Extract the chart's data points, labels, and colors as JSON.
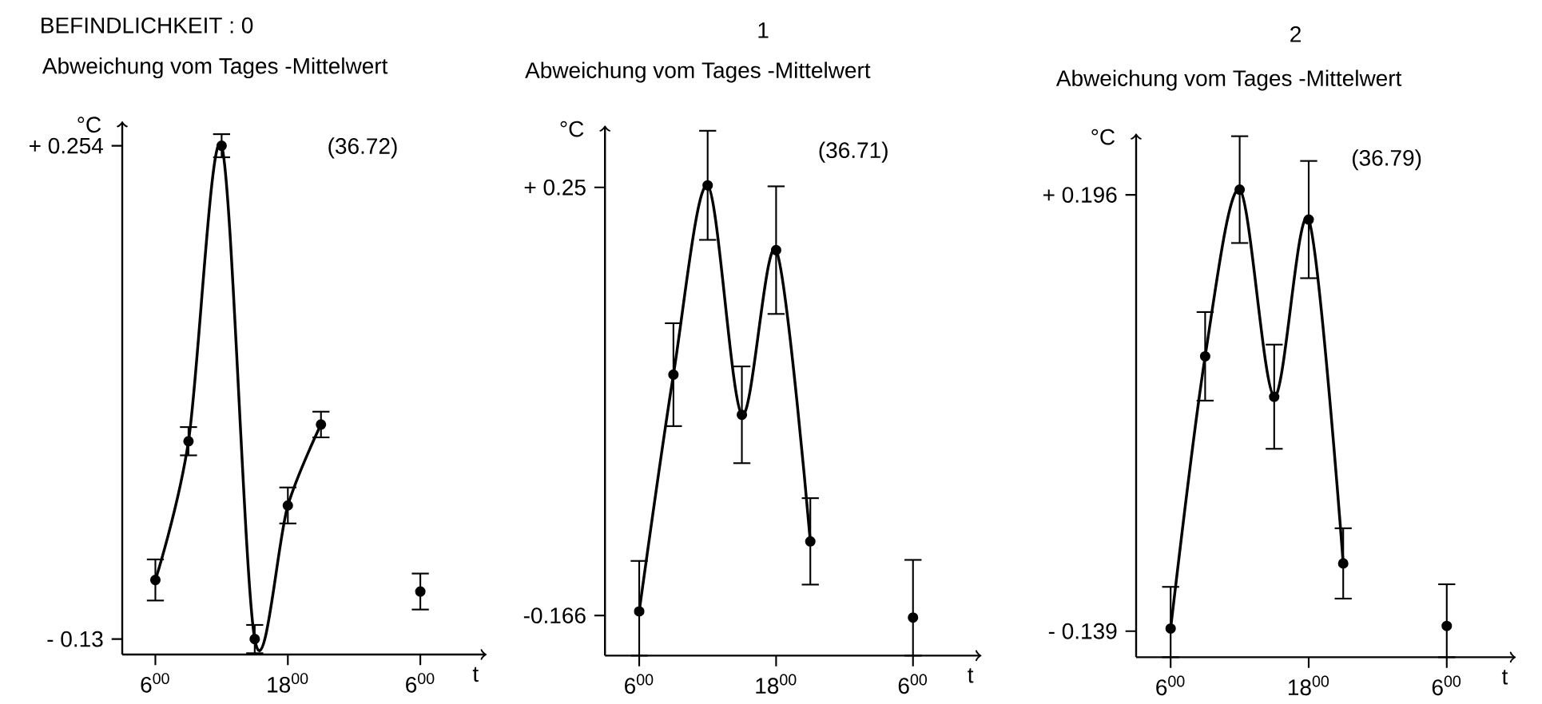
{
  "chart_data": [
    {
      "type": "line",
      "title": "BEFINDLICHKEIT : 0",
      "ylabel": "Abweichung vom Tages -Mittelwert",
      "xlabel": "t",
      "annotations": [
        "°C",
        "(36.72)"
      ],
      "marker": "circle",
      "categories": [
        "6$^{00}$",
        null,
        null,
        null,
        "18$^{00}$",
        null,
        null,
        null,
        "6$^{00}$"
      ],
      "ylim": [
        -0.142,
        0.273
      ],
      "yticks": [
        {
          "value": -0.13,
          "label": "- 0.13"
        },
        {
          "value": 0.254,
          "label": "+ 0.254"
        }
      ],
      "series": [
        {
          "color": "#000000",
          "values": [
            -0.084,
            0.024,
            0.254,
            -0.13,
            -0.026,
            0.037,
            null,
            null,
            null
          ],
          "errors": [
            0.016,
            0.011,
            0.009,
            0.011,
            0.014,
            0.01,
            null,
            null,
            null
          ]
        },
        {
          "type": "scatter",
          "color": "#000000",
          "values": [
            null,
            null,
            null,
            null,
            null,
            null,
            null,
            null,
            -0.093
          ],
          "errors": [
            null,
            null,
            null,
            null,
            null,
            null,
            null,
            null,
            0.014
          ]
        }
      ]
    },
    {
      "type": "line",
      "title": "1",
      "ylabel": "Abweichung vom Tages -Mittelwert",
      "xlabel": "t",
      "annotations": [
        "°C",
        "(36.71)"
      ],
      "marker": "circle",
      "categories": [
        "6$^{00}$",
        null,
        null,
        null,
        "18$^{00}$",
        null,
        null,
        null,
        "6$^{00}$"
      ],
      "ylim": [
        -0.205,
        0.31
      ],
      "yticks": [
        {
          "value": -0.166,
          "label": "-0.166"
        },
        {
          "value": 0.25,
          "label": "+ 0.25"
        }
      ],
      "series": [
        {
          "color": "#000000",
          "values": [
            -0.162,
            0.068,
            0.252,
            0.029,
            0.189,
            -0.094,
            null,
            null,
            null
          ],
          "errors": [
            [
              -0.205,
              -0.113
            ],
            0.05,
            0.053,
            0.047,
            0.062,
            0.042,
            null,
            null,
            null
          ]
        },
        {
          "type": "scatter",
          "color": "#000000",
          "values": [
            null,
            null,
            null,
            null,
            null,
            null,
            null,
            null,
            -0.168
          ],
          "errors": [
            null,
            null,
            null,
            null,
            null,
            null,
            null,
            null,
            [
              -0.205,
              -0.112
            ]
          ]
        }
      ]
    },
    {
      "type": "line",
      "title": "2",
      "ylabel": "Abweichung vom Tages -Mittelwert",
      "xlabel": "t",
      "annotations": [
        "°C",
        "(36.79)"
      ],
      "marker": "circle",
      "categories": [
        "6$^{00}$",
        null,
        null,
        null,
        "18$^{00}$",
        null,
        null,
        null,
        "6$^{00}$"
      ],
      "ylim": [
        -0.159,
        0.243
      ],
      "yticks": [
        {
          "value": -0.139,
          "label": "- 0.139"
        },
        {
          "value": 0.196,
          "label": "+ 0.196"
        }
      ],
      "series": [
        {
          "color": "#000000",
          "values": [
            -0.137,
            0.072,
            0.2,
            0.041,
            0.177,
            -0.087,
            null,
            null,
            null
          ],
          "errors": [
            [
              -0.159,
              -0.105
            ],
            0.034,
            0.041,
            0.04,
            0.045,
            0.027,
            null,
            null,
            null
          ]
        },
        {
          "type": "scatter",
          "color": "#000000",
          "values": [
            null,
            null,
            null,
            null,
            null,
            null,
            null,
            null,
            -0.135
          ],
          "errors": [
            null,
            null,
            null,
            null,
            null,
            null,
            null,
            null,
            [
              -0.159,
              -0.103
            ]
          ]
        }
      ]
    }
  ]
}
